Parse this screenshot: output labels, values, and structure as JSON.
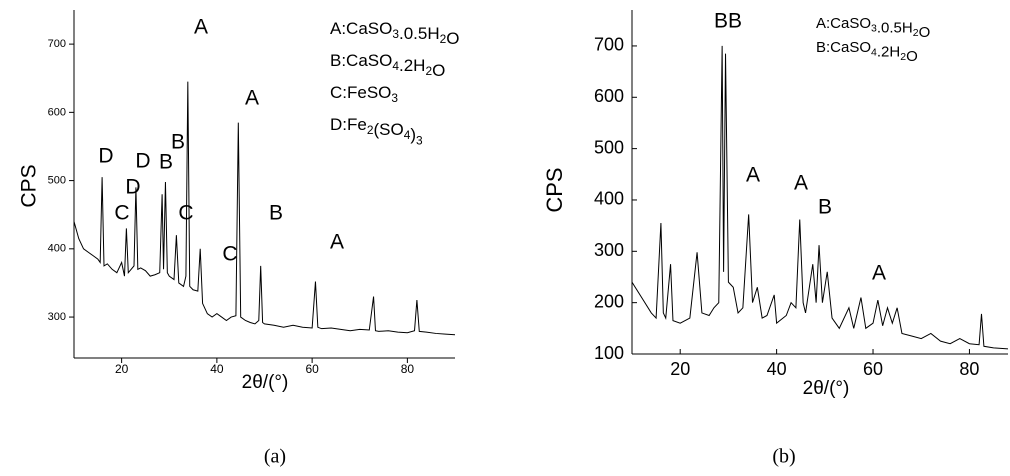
{
  "chart_data": [
    {
      "type": "line",
      "caption": "(a)",
      "x_label": "2θ/(°)",
      "y_label": "CPS",
      "legend": [
        "A:CaSO3.0.5H2O",
        "B:CaSO4.2H2O",
        "C:FeSO3",
        "D:Fe2(SO4)3"
      ],
      "annotations": [
        "A",
        "A",
        "B",
        "B",
        "D",
        "D",
        "D",
        "C",
        "C",
        "C",
        "B",
        "A"
      ],
      "xlim": [
        10,
        90
      ],
      "xticks": [
        20,
        40,
        60,
        80
      ],
      "ylim": [
        240,
        750
      ],
      "yticks": [
        300,
        400,
        500,
        600,
        700
      ],
      "color": "#000000",
      "x": [
        10,
        11,
        12,
        13,
        14,
        15,
        15.5,
        15.9,
        16.3,
        17,
        18,
        19,
        20,
        20.6,
        21,
        21.4,
        22,
        22.6,
        23,
        23.4,
        24,
        25,
        26,
        27,
        28,
        28.5,
        28.8,
        29.2,
        29.6,
        30,
        31,
        31.5,
        32,
        33,
        33.5,
        33.9,
        34.3,
        35,
        36,
        36.5,
        37,
        38,
        39,
        40,
        41,
        42,
        43,
        44,
        44.5,
        45,
        46,
        47,
        48,
        48.8,
        49.2,
        49.6,
        50,
        52,
        54,
        56,
        58,
        60,
        60.7,
        61.2,
        62,
        64,
        66,
        68,
        70,
        72,
        72.9,
        73.3,
        74,
        76,
        78,
        80,
        81.5,
        82,
        82.5,
        84,
        86,
        88,
        90
      ],
      "values": [
        440,
        415,
        400,
        395,
        390,
        385,
        380,
        505,
        375,
        378,
        370,
        365,
        380,
        360,
        430,
        365,
        370,
        375,
        490,
        370,
        372,
        368,
        360,
        362,
        365,
        480,
        370,
        498,
        365,
        360,
        355,
        420,
        350,
        345,
        360,
        645,
        345,
        340,
        338,
        400,
        320,
        305,
        300,
        305,
        300,
        295,
        300,
        302,
        585,
        300,
        295,
        292,
        290,
        295,
        375,
        292,
        290,
        288,
        285,
        288,
        285,
        284,
        352,
        285,
        283,
        284,
        282,
        280,
        282,
        281,
        330,
        280,
        279,
        280,
        278,
        277,
        280,
        325,
        279,
        278,
        276,
        275,
        274
      ]
    },
    {
      "type": "line",
      "caption": "(b)",
      "x_label": "2θ/(°)",
      "y_label": "CPS",
      "legend": [
        "A:CaSO3.0.5H2O",
        "B:CaSO4.2H2O"
      ],
      "annotations": [
        "BB",
        "A",
        "A",
        "B",
        "A"
      ],
      "xlim": [
        10,
        88
      ],
      "xticks": [
        20,
        40,
        60,
        80
      ],
      "ylim": [
        100,
        770
      ],
      "yticks": [
        100,
        200,
        300,
        400,
        500,
        600,
        700
      ],
      "color": "#000000",
      "x": [
        10,
        12,
        14,
        15,
        16,
        16.5,
        17,
        18,
        18.5,
        20,
        22,
        23.5,
        24.5,
        26,
        27,
        28,
        28.7,
        29,
        29.4,
        30,
        31,
        32,
        33,
        34.2,
        35,
        36,
        37,
        38,
        39.5,
        40,
        42,
        43,
        44,
        44.8,
        45.5,
        46,
        47.5,
        48.2,
        48.8,
        49.5,
        50.5,
        51.5,
        53,
        55,
        56,
        57.5,
        58.5,
        60,
        61,
        62,
        63,
        64,
        65,
        66,
        68,
        70,
        72,
        74,
        76,
        78,
        80,
        82,
        82.5,
        83,
        85,
        88
      ],
      "values": [
        240,
        210,
        180,
        170,
        355,
        180,
        170,
        275,
        165,
        160,
        170,
        298,
        180,
        175,
        190,
        200,
        700,
        260,
        685,
        240,
        230,
        180,
        190,
        372,
        200,
        230,
        170,
        175,
        215,
        160,
        175,
        200,
        190,
        362,
        200,
        180,
        275,
        200,
        312,
        200,
        260,
        170,
        150,
        190,
        150,
        210,
        150,
        160,
        205,
        155,
        190,
        160,
        190,
        140,
        135,
        130,
        140,
        125,
        120,
        130,
        120,
        118,
        178,
        115,
        112,
        110
      ]
    }
  ]
}
